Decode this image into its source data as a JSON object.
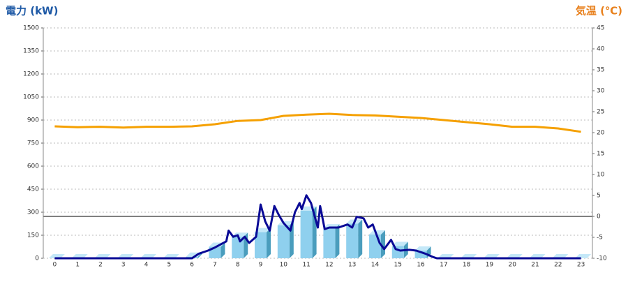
{
  "chart_data": {
    "type": "combo",
    "ylabel": "電力 (kW)",
    "y2label": "気温 (℃)",
    "categories": [
      "0",
      "1",
      "2",
      "3",
      "4",
      "5",
      "6",
      "7",
      "8",
      "9",
      "10",
      "11",
      "12",
      "13",
      "14",
      "15",
      "16",
      "17",
      "18",
      "19",
      "20",
      "21",
      "22",
      "23"
    ],
    "xlim": [
      -0.5,
      23.5
    ],
    "ylim": [
      0,
      1500
    ],
    "yticks": [
      0,
      150,
      300,
      450,
      600,
      750,
      900,
      1050,
      1200,
      1350,
      1500
    ],
    "y2lim": [
      -10,
      45
    ],
    "y2ticks": [
      -10,
      -5,
      0,
      5,
      10,
      15,
      20,
      25,
      30,
      35,
      40,
      45
    ],
    "grid": true,
    "series": [
      {
        "type": "bar",
        "color": "#8fd0ee",
        "values": [
          0,
          0,
          0,
          0,
          0,
          0,
          10,
          75,
          140,
          170,
          215,
          310,
          195,
          225,
          155,
          80,
          50,
          0,
          0,
          0,
          0,
          0,
          0,
          0
        ]
      },
      {
        "type": "line",
        "color": "#0a0a96",
        "x": [
          0,
          6,
          6.3,
          6.7,
          7,
          7.5,
          7.6,
          7.8,
          8,
          8.1,
          8.3,
          8.5,
          8.8,
          9.0,
          9.2,
          9.4,
          9.6,
          9.8,
          10.0,
          10.3,
          10.5,
          10.7,
          10.8,
          11.0,
          11.2,
          11.5,
          11.6,
          11.8,
          12.0,
          12.4,
          12.8,
          13.0,
          13.2,
          13.5,
          13.7,
          13.9,
          14.2,
          14.4,
          14.7,
          14.9,
          15.1,
          15.5,
          15.8,
          16.2,
          16.5,
          16.7,
          23
        ],
        "values": [
          0,
          0,
          30,
          50,
          70,
          110,
          180,
          140,
          150,
          110,
          140,
          100,
          140,
          350,
          240,
          180,
          340,
          280,
          230,
          180,
          300,
          360,
          320,
          410,
          360,
          200,
          340,
          190,
          200,
          200,
          220,
          200,
          270,
          260,
          200,
          220,
          100,
          60,
          120,
          60,
          50,
          55,
          50,
          30,
          10,
          0,
          0
        ]
      },
      {
        "type": "line",
        "axis": "y2",
        "color": "#f5a000",
        "values": [
          21.5,
          21.3,
          21.4,
          21.2,
          21.4,
          21.4,
          21.5,
          22,
          22.8,
          23,
          24,
          24.3,
          24.5,
          24.2,
          24.1,
          23.8,
          23.5,
          23,
          22.5,
          22,
          21.4,
          21.4,
          21,
          20.2
        ]
      }
    ]
  }
}
